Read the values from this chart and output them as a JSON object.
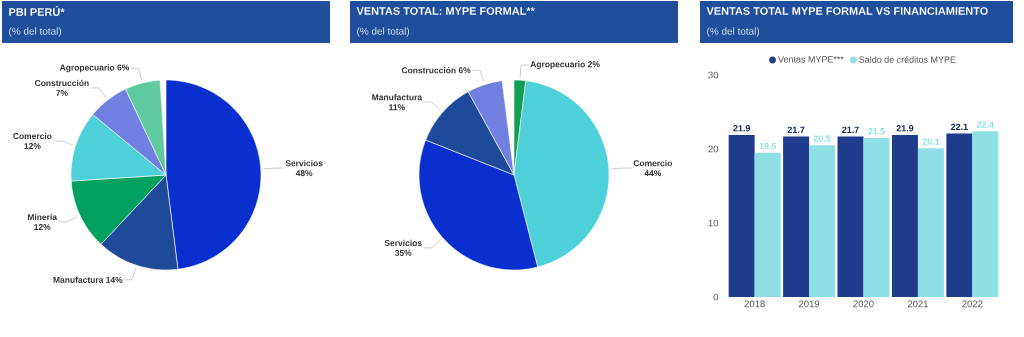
{
  "chart_data": [
    {
      "type": "pie",
      "title": "PBI PERÚ*",
      "subtitle": "(% del total)",
      "categories": [
        "Servicios",
        "Manufactura",
        "Minería",
        "Comercio",
        "Construcción",
        "Agropecuario"
      ],
      "values": [
        48,
        14,
        12,
        12,
        7,
        6
      ],
      "value_labels": [
        "48%",
        "14%",
        "12%",
        "12%",
        "7%",
        "6%"
      ],
      "colors": [
        "#0a2fcf",
        "#1f4a9a",
        "#00a060",
        "#4dd0d8",
        "#6f80e0",
        "#5fcaa0"
      ]
    },
    {
      "type": "pie",
      "title": "VENTAS TOTAL: MYPE FORMAL**",
      "subtitle": "(% del total)",
      "categories": [
        "Agropecuario",
        "Comercio",
        "Servicios",
        "Manufactura",
        "Construcción"
      ],
      "values": [
        2,
        44,
        35,
        11,
        6
      ],
      "value_labels": [
        "2%",
        "44%",
        "35%",
        "11%",
        "6%"
      ],
      "colors": [
        "#10a050",
        "#4dd0d8",
        "#0a2fcf",
        "#1f4a9a",
        "#6f80e0"
      ]
    },
    {
      "type": "bar",
      "title": "VENTAS TOTAL MYPE FORMAL VS FINANCIAMIENTO",
      "subtitle": "(% del total)",
      "categories": [
        "2018",
        "2019",
        "2020",
        "2021",
        "2022"
      ],
      "series": [
        {
          "name": "Ventas MYPE***",
          "color": "#1f3c8c",
          "values": [
            21.9,
            21.7,
            21.7,
            21.9,
            22.1
          ]
        },
        {
          "name": "Saldo de créditos MYPE",
          "color": "#8ee0e4",
          "values": [
            19.5,
            20.5,
            21.5,
            20.1,
            22.4
          ]
        }
      ],
      "ylim": [
        0,
        30
      ],
      "yticks": [
        0,
        10,
        20,
        30
      ],
      "grid": false,
      "legend": "top",
      "data_labels": true
    }
  ]
}
